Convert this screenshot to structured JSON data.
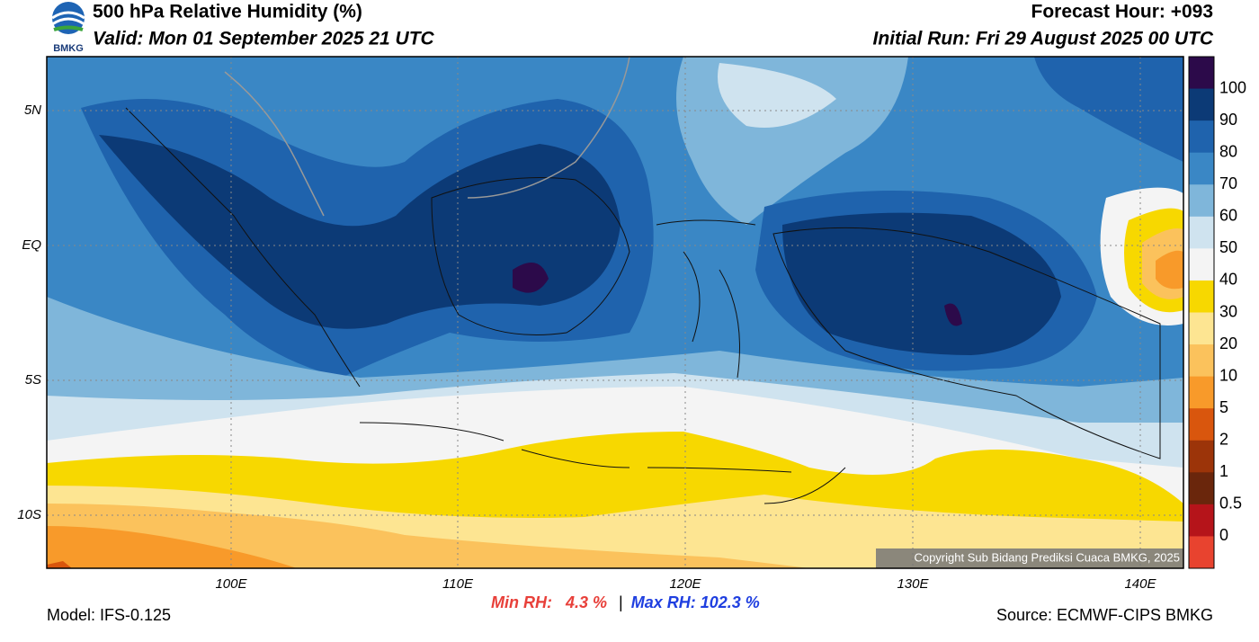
{
  "header": {
    "title": "500 hPa Relative Humidity (%)",
    "valid": "Valid: Mon 01 September 2025 21 UTC",
    "forecast_hour": "Forecast Hour: +093",
    "initial_run": "Initial Run: Fri 29 August 2025 00 UTC",
    "logo_text": "BMKG"
  },
  "map": {
    "lat_labels": [
      "5N",
      "EQ",
      "5S",
      "10S"
    ],
    "lon_labels": [
      "100E",
      "110E",
      "120E",
      "130E",
      "140E"
    ],
    "copyright": "Copyright Sub Bidang Prediksi Cuaca BMKG, 2025"
  },
  "colorbar": {
    "labels": [
      "100",
      "90",
      "80",
      "70",
      "60",
      "50",
      "40",
      "30",
      "20",
      "10",
      "5",
      "2",
      "1",
      "0.5",
      "0"
    ],
    "colors": [
      "#2c0a4a",
      "#0c3a76",
      "#1f63ad",
      "#3a87c5",
      "#7fb6da",
      "#cfe3ef",
      "#f4f4f4",
      "#f7d800",
      "#fde592",
      "#fbc25c",
      "#f89a2a",
      "#d9560d",
      "#9c3409",
      "#6a260c",
      "#b5141a",
      "#e8432f"
    ]
  },
  "footer": {
    "min_rh_label": "Min RH:",
    "min_rh_value": "4.3 %",
    "separator": "|",
    "max_rh": "Max RH: 102.3 %",
    "model": "Model: IFS-0.125",
    "source": "Source: ECMWF-CIPS BMKG"
  }
}
